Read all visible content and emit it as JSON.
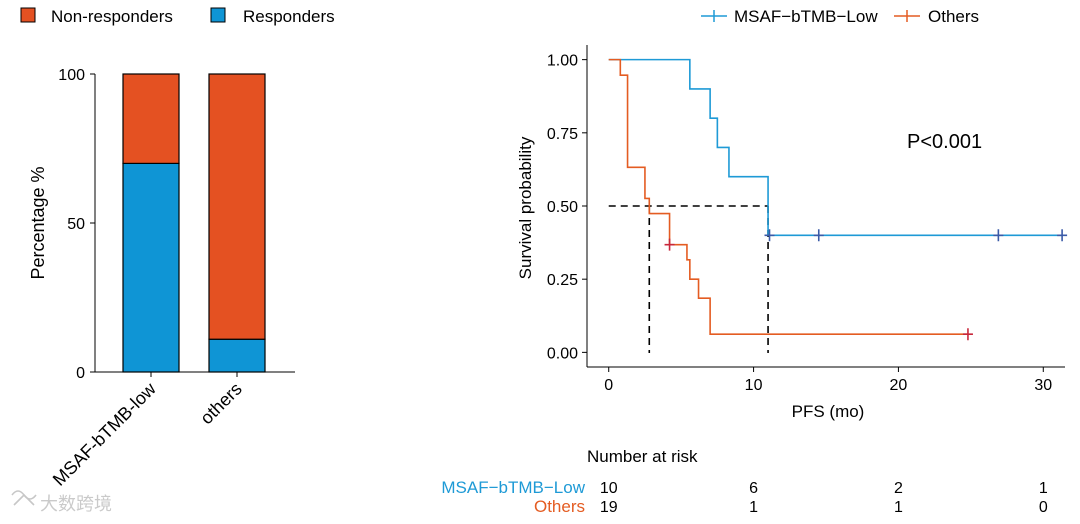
{
  "chart_data": [
    {
      "type": "bar",
      "stacked": true,
      "categories": [
        "MSAF-bTMB-low",
        "others"
      ],
      "series": [
        {
          "name": "Responders",
          "values": [
            70,
            11
          ],
          "color": "#0F95D5"
        },
        {
          "name": "Non-responders",
          "values": [
            30,
            89
          ],
          "color": "#E45122"
        }
      ],
      "ylabel": "Percentage %",
      "ylim": [
        0,
        100
      ],
      "yticks": [
        "0",
        "50",
        "100"
      ],
      "legend_order": [
        "Non-responders",
        "Responders"
      ],
      "legend_placement": "top-left"
    },
    {
      "type": "line",
      "step": true,
      "xlabel": "PFS (mo)",
      "ylabel": "Survival probability",
      "xlim": [
        -1.5,
        31.5
      ],
      "ylim": [
        -0.05,
        1.05
      ],
      "xticks": [
        "0",
        "10",
        "20",
        "30"
      ],
      "yticks": [
        "0.00",
        "0.25",
        "0.50",
        "0.75",
        "1.00"
      ],
      "annotation": "P<0.001",
      "legend_placement": "top-right",
      "median_lines": [
        2.8,
        11
      ],
      "series": [
        {
          "name": "MSAF−bTMB−Low",
          "color": "#1E9AD6",
          "steps": [
            [
              0,
              1.0
            ],
            [
              5.6,
              0.9
            ],
            [
              7.0,
              0.8
            ],
            [
              7.5,
              0.7
            ],
            [
              8.3,
              0.6
            ],
            [
              11,
              0.4
            ],
            [
              31.3,
              0.4
            ]
          ],
          "censor": [
            11.1,
            14.5,
            26.9,
            31.3
          ]
        },
        {
          "name": "Others",
          "color": "#E45C22",
          "steps": [
            [
              0,
              1.0
            ],
            [
              0.8,
              0.947
            ],
            [
              1.3,
              0.632
            ],
            [
              2.5,
              0.526
            ],
            [
              2.8,
              0.474
            ],
            [
              4.2,
              0.368
            ],
            [
              5.4,
              0.316
            ],
            [
              5.6,
              0.25
            ],
            [
              6.2,
              0.185
            ],
            [
              7.0,
              0.062
            ],
            [
              24.8,
              0.062
            ]
          ],
          "censor": [
            4.2,
            24.8
          ]
        }
      ],
      "risk_table": {
        "title": "Number at risk",
        "times": [
          0,
          10,
          20,
          30
        ],
        "rows": [
          {
            "label": "MSAF−bTMB−Low",
            "color": "#1E9AD6",
            "values": [
              10,
              6,
              2,
              1
            ]
          },
          {
            "label": "Others",
            "color": "#E45C22",
            "values": [
              19,
              1,
              1,
              0
            ]
          }
        ]
      }
    }
  ],
  "watermark": "大数跨境"
}
